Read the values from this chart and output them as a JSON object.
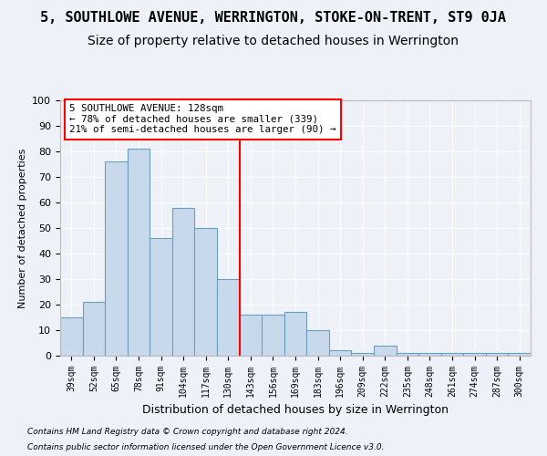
{
  "title": "5, SOUTHLOWE AVENUE, WERRINGTON, STOKE-ON-TRENT, ST9 0JA",
  "subtitle": "Size of property relative to detached houses in Werrington",
  "xlabel": "Distribution of detached houses by size in Werrington",
  "ylabel": "Number of detached properties",
  "categories": [
    "39sqm",
    "52sqm",
    "65sqm",
    "78sqm",
    "91sqm",
    "104sqm",
    "117sqm",
    "130sqm",
    "143sqm",
    "156sqm",
    "169sqm",
    "183sqm",
    "196sqm",
    "209sqm",
    "222sqm",
    "235sqm",
    "248sqm",
    "261sqm",
    "274sqm",
    "287sqm",
    "300sqm"
  ],
  "values": [
    15,
    21,
    76,
    81,
    46,
    58,
    50,
    30,
    16,
    16,
    17,
    10,
    2,
    1,
    4,
    1,
    1,
    1,
    1,
    1,
    1
  ],
  "bar_color": "#c9d9ec",
  "bar_edge_color": "#6a9fc0",
  "red_line_x": 7,
  "annotation_title": "5 SOUTHLOWE AVENUE: 128sqm",
  "annotation_line1": "← 78% of detached houses are smaller (339)",
  "annotation_line2": "21% of semi-detached houses are larger (90) →",
  "footer1": "Contains HM Land Registry data © Crown copyright and database right 2024.",
  "footer2": "Contains public sector information licensed under the Open Government Licence v3.0.",
  "ylim": [
    0,
    100
  ],
  "yticks": [
    0,
    10,
    20,
    30,
    40,
    50,
    60,
    70,
    80,
    90,
    100
  ],
  "bg_color": "#eef2f8",
  "plot_bg_color": "#eef2f8",
  "title_fontsize": 11,
  "subtitle_fontsize": 10
}
